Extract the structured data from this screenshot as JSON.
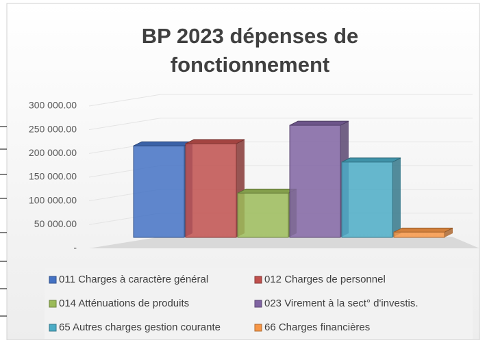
{
  "chart_data": {
    "type": "bar3d",
    "title": "BP 2023 dépenses de fonctionnement",
    "ylim": [
      0,
      300000
    ],
    "yticks": [
      {
        "value": 0,
        "label": "-"
      },
      {
        "value": 50000,
        "label": "50 000.00"
      },
      {
        "value": 100000,
        "label": "100 000.00"
      },
      {
        "value": 150000,
        "label": "150 000.00"
      },
      {
        "value": 200000,
        "label": "200 000.00"
      },
      {
        "value": 250000,
        "label": "250 000.00"
      },
      {
        "value": 300000,
        "label": "300 000.00"
      }
    ],
    "grid": true,
    "legend": "bottom",
    "series": [
      {
        "name": "011 Charges à caractère général",
        "color": "#4472c4",
        "values": [
          209000
        ]
      },
      {
        "name": "012 Charges de personnel",
        "color": "#c0504d",
        "values": [
          214000
        ]
      },
      {
        "name": "014 Atténuations de produits",
        "color": "#9bbb59",
        "values": [
          101000
        ]
      },
      {
        "name": "023 Virement à la sect° d'investis.",
        "color": "#8064a2",
        "values": [
          256000
        ]
      },
      {
        "name": "65 Autres charges gestion courante",
        "color": "#4bacc6",
        "values": [
          172000
        ]
      },
      {
        "name": "66 Charges financières",
        "color": "#f79646",
        "values": [
          12000
        ]
      }
    ]
  }
}
